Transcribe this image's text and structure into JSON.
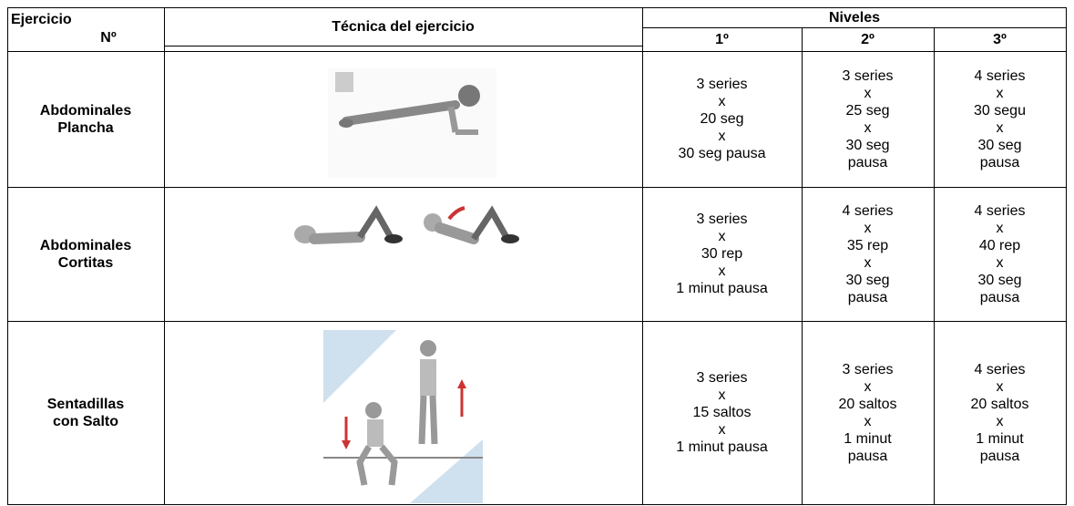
{
  "header": {
    "exercise": [
      "Ejercicio",
      "Nº"
    ],
    "technique": "Técnica del ejercicio",
    "levels": "Niveles",
    "level_labels": [
      "1º",
      "2º",
      "3º"
    ]
  },
  "rows": [
    {
      "name": [
        "Abdominales",
        "Plancha"
      ],
      "levels": [
        [
          "3 series",
          "x",
          "20 seg",
          "x",
          "30 seg pausa"
        ],
        [
          "3 series",
          "x",
          "25 seg",
          "x",
          "30 seg",
          "pausa"
        ],
        [
          "4 series",
          "x",
          "30 segu",
          "x",
          "30 seg",
          "pausa"
        ]
      ]
    },
    {
      "name": [
        "Abdominales",
        "Cortitas"
      ],
      "levels": [
        [
          "3 series",
          "x",
          "30 rep",
          "x",
          "1 minut pausa"
        ],
        [
          "4 series",
          "x",
          "35 rep",
          "x",
          "30 seg",
          "pausa"
        ],
        [
          "4 series",
          "x",
          "40 rep",
          "x",
          "30 seg",
          "pausa"
        ]
      ]
    },
    {
      "name": [
        "Sentadillas",
        "con Salto"
      ],
      "levels": [
        [
          "3 series",
          "x",
          "15 saltos",
          "x",
          "1 minut pausa"
        ],
        [
          "3 series",
          "x",
          "20 saltos",
          "x",
          "1 minut",
          "pausa"
        ],
        [
          "4 series",
          "x",
          "20 saltos",
          "x",
          "1 minut",
          "pausa"
        ]
      ]
    }
  ]
}
